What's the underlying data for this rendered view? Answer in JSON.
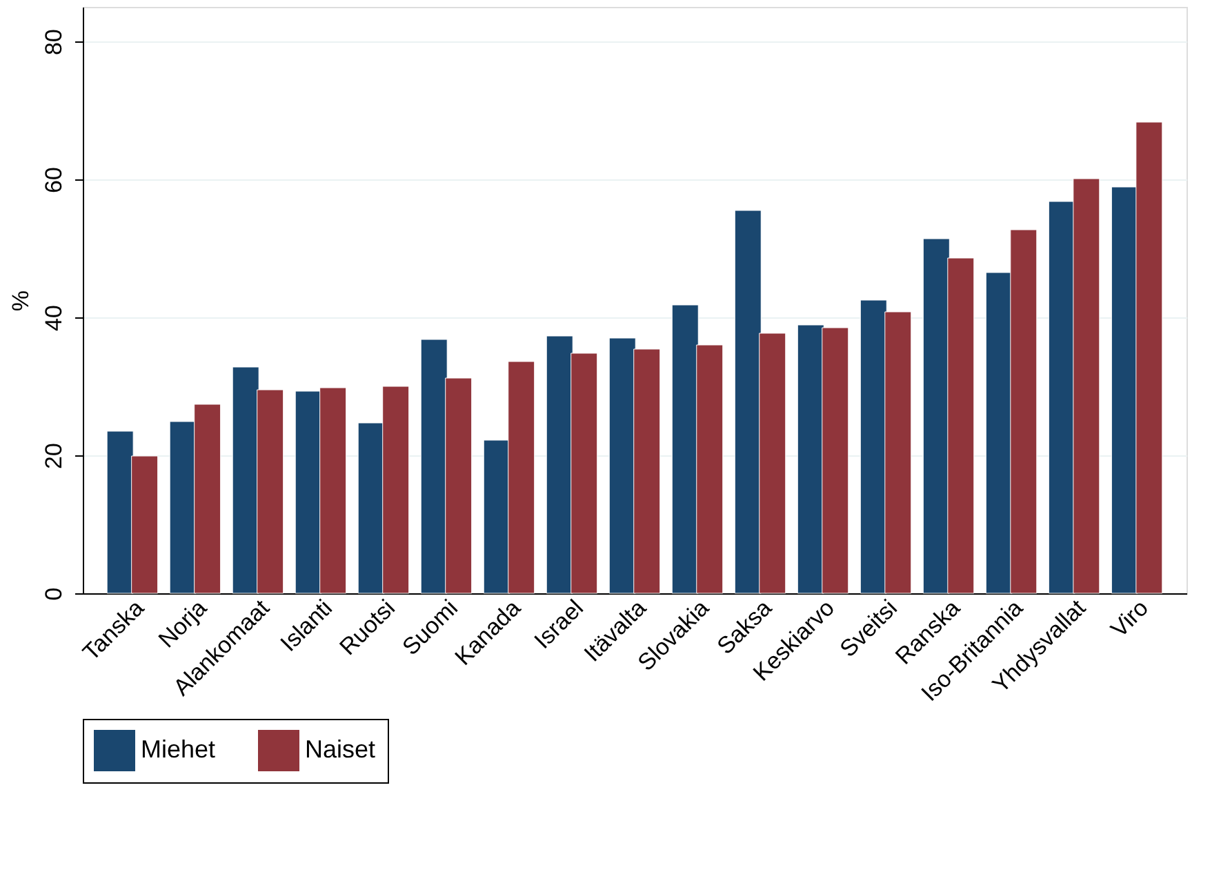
{
  "chart_data": {
    "type": "bar",
    "ylabel": "%",
    "categories": [
      "Tanska",
      "Norja",
      "Alankomaat",
      "Islanti",
      "Ruotsi",
      "Suomi",
      "Kanada",
      "Israel",
      "Itävalta",
      "Slovakia",
      "Saksa",
      "Keskiarvo",
      "Sveitsi",
      "Ranska",
      "Iso-Britannia",
      "Yhdysvallat",
      "Viro"
    ],
    "series": [
      {
        "name": "Miehet",
        "color": "#1a476f",
        "values": [
          23.5,
          24.9,
          32.8,
          29.3,
          24.7,
          36.8,
          22.2,
          37.3,
          37.0,
          41.8,
          55.5,
          38.9,
          42.5,
          51.4,
          46.5,
          56.8,
          58.9
        ]
      },
      {
        "name": "Naiset",
        "color": "#90353b",
        "values": [
          19.9,
          27.4,
          29.5,
          29.8,
          30.0,
          31.2,
          33.6,
          34.8,
          35.4,
          36.0,
          37.7,
          38.5,
          40.8,
          48.6,
          52.7,
          60.1,
          68.3
        ]
      }
    ],
    "ylim": [
      0,
      85
    ],
    "yticks": [
      0,
      20,
      40,
      60,
      80
    ],
    "grid": "y",
    "legend": "bottom"
  }
}
